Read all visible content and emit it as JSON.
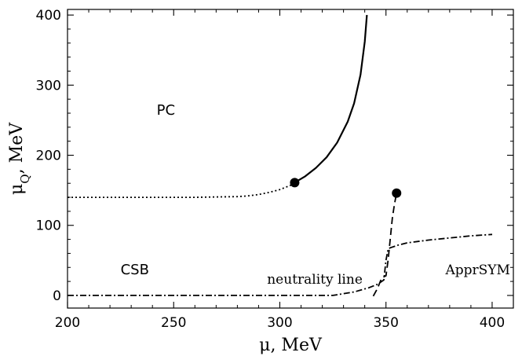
{
  "chart_data": {
    "type": "line",
    "title": "",
    "xlabel": "μ, MeV",
    "ylabel_main": "μ",
    "ylabel_sub": "Q",
    "ylabel_rest": ", MeV",
    "xlim": [
      200,
      410
    ],
    "ylim": [
      -18,
      408
    ],
    "xticks": [
      200,
      250,
      300,
      350,
      400
    ],
    "yticks": [
      0,
      100,
      200,
      300,
      400
    ],
    "xtick_labels": [
      "200",
      "250",
      "300",
      "350",
      "400"
    ],
    "ytick_labels": [
      "0",
      "100",
      "200",
      "300",
      "400"
    ],
    "x_minor_step": 10,
    "y_minor_step": 20,
    "grid": false,
    "legend": "none",
    "annotations": [
      {
        "text": "PC",
        "x": 242,
        "y": 258,
        "style": "sans"
      },
      {
        "text": "CSB",
        "x": 225,
        "y": 30,
        "style": "sans"
      },
      {
        "text": "neutrality line",
        "x": 294,
        "y": 17,
        "style": "serif"
      },
      {
        "text": "ApprSYM",
        "x": 378,
        "y": 30,
        "style": "serif"
      }
    ],
    "series": [
      {
        "dash": "dotted",
        "x": [
          200,
          220,
          240,
          260,
          270,
          280,
          285,
          290,
          295,
          300,
          305,
          307
        ],
        "y": [
          140,
          140,
          140,
          140,
          140.5,
          141,
          142,
          144,
          147,
          151,
          157,
          161
        ]
      },
      {
        "dash": "solid",
        "x": [
          307,
          312,
          317,
          322,
          327,
          332,
          335,
          338,
          340,
          341
        ],
        "y": [
          161,
          170,
          182,
          197,
          218,
          248,
          274,
          315,
          362,
          400
        ]
      },
      {
        "dash": "dashdot",
        "x": [
          200,
          250,
          300,
          325,
          335,
          342,
          346,
          349,
          350,
          351,
          352,
          356,
          360,
          370,
          380,
          390,
          400
        ],
        "y": [
          0,
          0,
          0,
          0,
          5,
          11,
          16,
          22,
          50,
          66,
          68,
          72,
          75,
          79,
          82,
          85,
          87
        ]
      },
      {
        "dash": "dashed",
        "x": [
          344,
          346,
          348,
          350,
          351,
          352,
          353,
          354,
          355
        ],
        "y": [
          -1,
          10,
          25,
          28,
          50,
          80,
          110,
          130,
          146
        ]
      }
    ],
    "points": [
      {
        "x": 307,
        "y": 161
      },
      {
        "x": 355,
        "y": 146
      }
    ],
    "colors": {
      "line": "#000000",
      "background": "#ffffff"
    }
  }
}
